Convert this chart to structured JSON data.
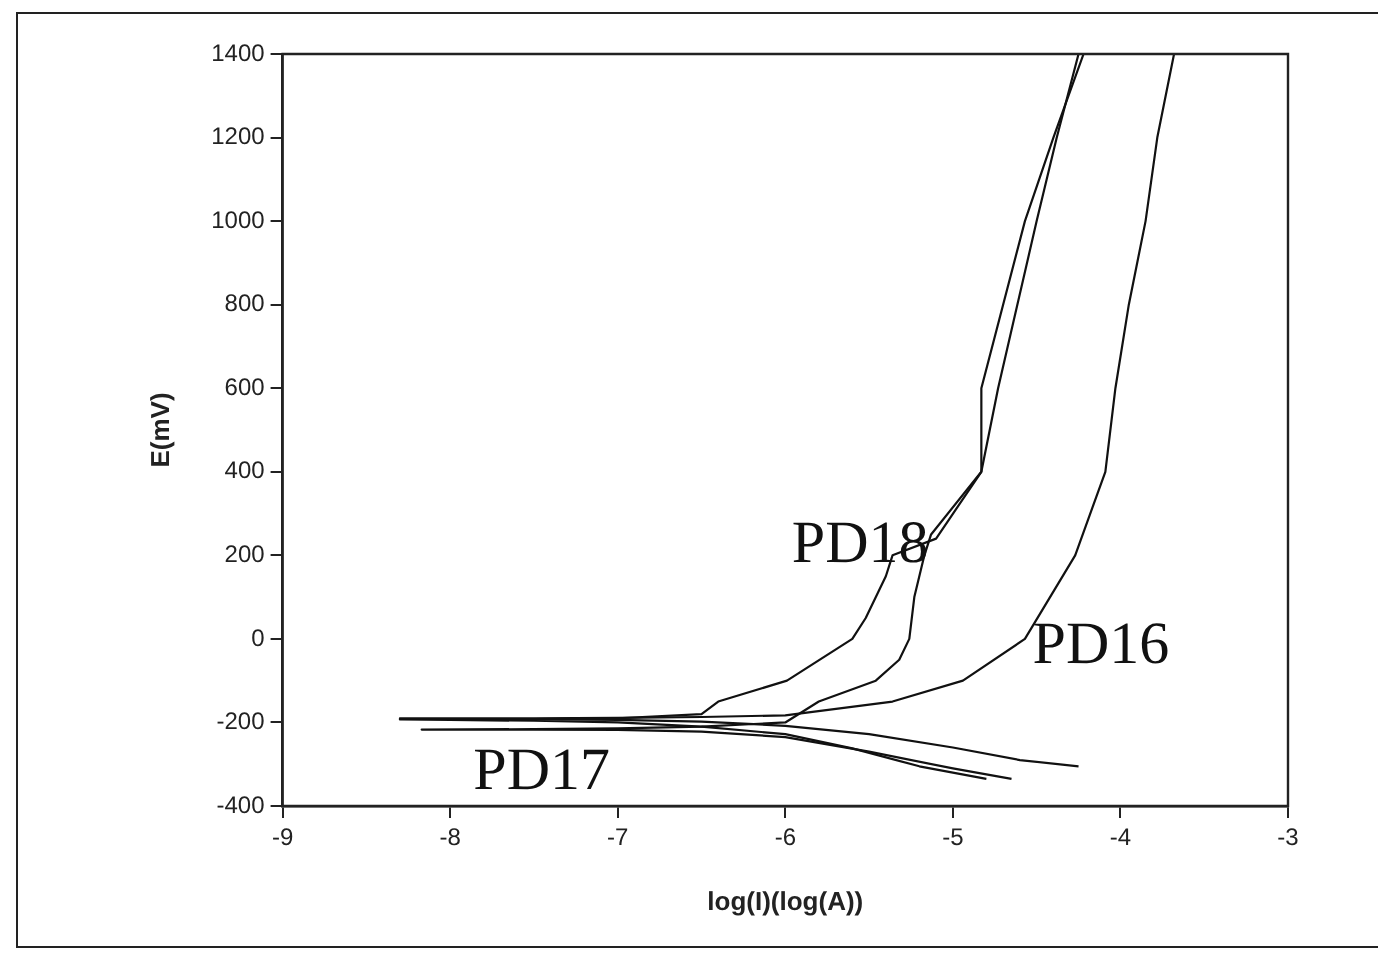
{
  "chart_data": {
    "type": "line",
    "xlabel": "log(I)(log(A))",
    "ylabel": "E(mV)",
    "xlim": [
      -9,
      -3
    ],
    "ylim": [
      -400,
      1400
    ],
    "xticks": [
      -9,
      -8,
      -7,
      -6,
      -5,
      -4,
      -3
    ],
    "yticks": [
      -400,
      -200,
      0,
      200,
      400,
      600,
      800,
      1000,
      1200,
      1400
    ],
    "grid": false,
    "legend": false,
    "marker": "none",
    "line_style": "solid",
    "series": [
      {
        "name": "PD16",
        "color": "#111111",
        "x": [
          -4.25,
          -4.6,
          -5.0,
          -5.5,
          -6.0,
          -6.5,
          -7.0,
          -7.5,
          -8.0,
          -8.3,
          -7.5,
          -7.0,
          -6.5,
          -6.0,
          -5.36,
          -4.94,
          -4.57,
          -4.27,
          -4.09,
          -4.03,
          -3.95,
          -3.85,
          -3.78,
          -3.68
        ],
        "values": [
          -305,
          -290,
          -260,
          -228,
          -208,
          -198,
          -194,
          -192,
          -191,
          -190,
          -190,
          -189,
          -187,
          -183,
          -150,
          -100,
          0,
          200,
          400,
          600,
          800,
          1000,
          1200,
          1400
        ]
      },
      {
        "name": "PD17",
        "color": "#111111",
        "x": [
          -4.65,
          -5.0,
          -5.5,
          -6.0,
          -6.5,
          -7.0,
          -7.5,
          -8.17,
          -7.5,
          -7.0,
          -6.5,
          -6.0,
          -5.8,
          -5.46,
          -5.32,
          -5.26,
          -5.23,
          -5.17,
          -5.13,
          -4.83,
          -4.73,
          -4.5,
          -4.38,
          -4.25
        ],
        "values": [
          -335,
          -310,
          -270,
          -235,
          -222,
          -218,
          -217,
          -217,
          -216,
          -214,
          -210,
          -200,
          -150,
          -100,
          -50,
          0,
          100,
          200,
          250,
          400,
          600,
          1000,
          1200,
          1400
        ]
      },
      {
        "name": "PD18",
        "color": "#111111",
        "x": [
          -4.8,
          -5.2,
          -5.6,
          -6.0,
          -6.5,
          -7.0,
          -7.5,
          -8.0,
          -8.3,
          -7.5,
          -7.0,
          -6.5,
          -6.4,
          -5.99,
          -5.6,
          -5.52,
          -5.4,
          -5.36,
          -5.1,
          -4.83,
          -4.83,
          -4.57,
          -4.4,
          -4.22
        ],
        "values": [
          -335,
          -305,
          -262,
          -228,
          -210,
          -200,
          -196,
          -194,
          -193,
          -192,
          -190,
          -180,
          -150,
          -100,
          0,
          50,
          150,
          200,
          240,
          400,
          600,
          1000,
          1200,
          1400
        ]
      }
    ]
  }
}
